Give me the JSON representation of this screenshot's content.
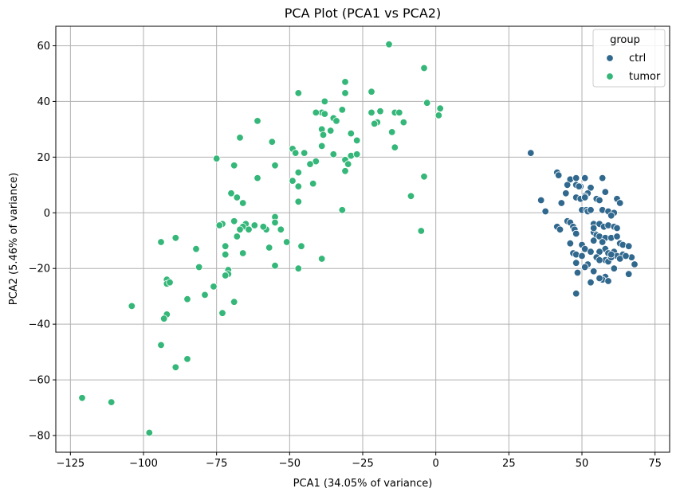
{
  "chart_data": {
    "type": "scatter",
    "title": "PCA Plot (PCA1 vs PCA2)",
    "xlabel": "PCA1 (34.05% of variance)",
    "ylabel": "PCA2 (5.46% of variance)",
    "xlim": [
      -130,
      80
    ],
    "ylim": [
      -86,
      67
    ],
    "xticks": [
      -125,
      -100,
      -75,
      -50,
      -25,
      0,
      25,
      50,
      75
    ],
    "yticks": [
      -80,
      -60,
      -40,
      -20,
      0,
      20,
      40,
      60
    ],
    "xtick_labels": [
      "−125",
      "−100",
      "−75",
      "−50",
      "−25",
      "0",
      "25",
      "50",
      "75"
    ],
    "ytick_labels": [
      "−80",
      "−60",
      "−40",
      "−20",
      "0",
      "20",
      "40",
      "60"
    ],
    "grid": true,
    "legend": {
      "title": "group",
      "position": "top-right"
    },
    "series": [
      {
        "name": "ctrl",
        "color": "#31688e",
        "points": [
          [
            32.5,
            21.5
          ],
          [
            41.5,
            14.5
          ],
          [
            42,
            13.5
          ],
          [
            46,
            12
          ],
          [
            48,
            12.5
          ],
          [
            51,
            12.5
          ],
          [
            57,
            12.5
          ],
          [
            45,
            10
          ],
          [
            48,
            10
          ],
          [
            49.5,
            9.5
          ],
          [
            49,
            9.5
          ],
          [
            53,
            9
          ],
          [
            58,
            7.5
          ],
          [
            52,
            7
          ],
          [
            44.5,
            7
          ],
          [
            36,
            4.5
          ],
          [
            43,
            3.5
          ],
          [
            48,
            5.5
          ],
          [
            49.5,
            5
          ],
          [
            51,
            6
          ],
          [
            51,
            5.5
          ],
          [
            55,
            5
          ],
          [
            56,
            4.5
          ],
          [
            62,
            5
          ],
          [
            63,
            3.5
          ],
          [
            37.5,
            0.5
          ],
          [
            50,
            1
          ],
          [
            51.5,
            1
          ],
          [
            52,
            0.5
          ],
          [
            53,
            1
          ],
          [
            57,
            1
          ],
          [
            59,
            0.5
          ],
          [
            61,
            0
          ],
          [
            60,
            -1
          ],
          [
            45,
            -3
          ],
          [
            46,
            -3.5
          ],
          [
            47,
            -5
          ],
          [
            54,
            -4
          ],
          [
            56,
            -4
          ],
          [
            57.5,
            -5
          ],
          [
            59,
            -4.5
          ],
          [
            61,
            -5
          ],
          [
            62,
            -5.5
          ],
          [
            41.5,
            -5
          ],
          [
            42.5,
            -6
          ],
          [
            47.5,
            -6
          ],
          [
            48,
            -7.5
          ],
          [
            54,
            -7
          ],
          [
            55,
            -8
          ],
          [
            56,
            -8.5
          ],
          [
            58,
            -9
          ],
          [
            60,
            -9
          ],
          [
            62,
            -8.5
          ],
          [
            54,
            -10
          ],
          [
            57,
            -10.5
          ],
          [
            46,
            -11
          ],
          [
            50,
            -11.5
          ],
          [
            51,
            -13
          ],
          [
            58,
            -13
          ],
          [
            63,
            -11
          ],
          [
            64,
            -11.5
          ],
          [
            66,
            -12
          ],
          [
            53,
            -14
          ],
          [
            56,
            -14
          ],
          [
            59,
            -14.5
          ],
          [
            61,
            -14
          ],
          [
            62,
            -15.5
          ],
          [
            64,
            -15
          ],
          [
            67,
            -16
          ],
          [
            47,
            -14.5
          ],
          [
            48,
            -15
          ],
          [
            50,
            -15.5
          ],
          [
            55,
            -16
          ],
          [
            58,
            -17
          ],
          [
            59,
            -17.5
          ],
          [
            63,
            -16.5
          ],
          [
            65,
            -15.5
          ],
          [
            68,
            -18.5
          ],
          [
            48,
            -18
          ],
          [
            52,
            -18.5
          ],
          [
            56,
            -17
          ],
          [
            60,
            -16
          ],
          [
            61,
            -20
          ],
          [
            51,
            -19.5
          ],
          [
            54,
            -21
          ],
          [
            48.5,
            -21.5
          ],
          [
            58,
            -23
          ],
          [
            57,
            -24
          ],
          [
            59,
            -24.5
          ],
          [
            56,
            -23.5
          ],
          [
            53,
            -25
          ],
          [
            48,
            -29
          ],
          [
            66,
            -22
          ],
          [
            54,
            -5.5
          ],
          [
            60,
            -15
          ]
        ]
      },
      {
        "name": "tumor",
        "color": "#35b779",
        "points": [
          [
            -16,
            60.5
          ],
          [
            -4,
            52
          ],
          [
            -31,
            47
          ],
          [
            -47,
            43
          ],
          [
            -22,
            43.5
          ],
          [
            -31,
            43
          ],
          [
            -38,
            40
          ],
          [
            -3,
            39.5
          ],
          [
            -32,
            37
          ],
          [
            1.5,
            37.5
          ],
          [
            -22,
            36
          ],
          [
            -19,
            36.5
          ],
          [
            -14,
            36
          ],
          [
            -12.5,
            36
          ],
          [
            -39,
            36
          ],
          [
            -41,
            36
          ],
          [
            -38,
            35.5
          ],
          [
            1,
            35
          ],
          [
            -35,
            34
          ],
          [
            -61,
            33
          ],
          [
            -20,
            32.5
          ],
          [
            -34,
            33
          ],
          [
            -21,
            32
          ],
          [
            -11,
            32.5
          ],
          [
            -39,
            30
          ],
          [
            -36,
            29.5
          ],
          [
            -15,
            29
          ],
          [
            -29,
            28.5
          ],
          [
            -38.5,
            28
          ],
          [
            -67,
            27
          ],
          [
            -27,
            26
          ],
          [
            -56,
            25.5
          ],
          [
            -39,
            24
          ],
          [
            -14,
            23.5
          ],
          [
            -49,
            23
          ],
          [
            -48,
            21.5
          ],
          [
            -45,
            21.5
          ],
          [
            -35,
            21
          ],
          [
            -29,
            20.5
          ],
          [
            -27,
            21
          ],
          [
            -31,
            19
          ],
          [
            -41,
            18.5
          ],
          [
            -30,
            17.5
          ],
          [
            -43,
            17.5
          ],
          [
            -75,
            19.5
          ],
          [
            -69,
            17
          ],
          [
            -55,
            17
          ],
          [
            -47,
            14.5
          ],
          [
            -31,
            15
          ],
          [
            -61,
            12.5
          ],
          [
            -49,
            11.5
          ],
          [
            -42,
            10.5
          ],
          [
            -47,
            9.5
          ],
          [
            -4,
            13
          ],
          [
            -70,
            7
          ],
          [
            -66,
            3.5
          ],
          [
            -68,
            5.5
          ],
          [
            -47,
            4
          ],
          [
            -8.5,
            6
          ],
          [
            -32,
            1
          ],
          [
            -55,
            -1.5
          ],
          [
            -69,
            -3
          ],
          [
            -73,
            -4
          ],
          [
            -65,
            -4
          ],
          [
            -66,
            -5
          ],
          [
            -67,
            -6
          ],
          [
            -62,
            -4.5
          ],
          [
            -64,
            -6
          ],
          [
            -58,
            -6
          ],
          [
            -55,
            -3.5
          ],
          [
            -53,
            -6
          ],
          [
            -5,
            -6.5
          ],
          [
            -59,
            -5
          ],
          [
            -74,
            -4.5
          ],
          [
            -68,
            -8.5
          ],
          [
            -51,
            -10.5
          ],
          [
            -89,
            -9
          ],
          [
            -94,
            -10.5
          ],
          [
            -72,
            -12
          ],
          [
            -46,
            -12
          ],
          [
            -82,
            -13
          ],
          [
            -57,
            -12.5
          ],
          [
            -72,
            -15
          ],
          [
            -66,
            -14.5
          ],
          [
            -39,
            -16.5
          ],
          [
            -55,
            -19
          ],
          [
            -81,
            -19.5
          ],
          [
            -71,
            -20.5
          ],
          [
            -47,
            -20
          ],
          [
            -71,
            -22
          ],
          [
            -72,
            -22.5
          ],
          [
            -92,
            -24
          ],
          [
            -92,
            -25.5
          ],
          [
            -91,
            -25
          ],
          [
            -76,
            -26.5
          ],
          [
            -79,
            -29.5
          ],
          [
            -69,
            -32
          ],
          [
            -85,
            -31
          ],
          [
            -104,
            -33.5
          ],
          [
            -73,
            -36
          ],
          [
            -92,
            -36.5
          ],
          [
            -93,
            -38
          ],
          [
            -94,
            -47.5
          ],
          [
            -85,
            -52.5
          ],
          [
            -89,
            -55.5
          ],
          [
            -121,
            -66.5
          ],
          [
            -111,
            -68
          ],
          [
            -98,
            -79
          ]
        ]
      }
    ]
  }
}
